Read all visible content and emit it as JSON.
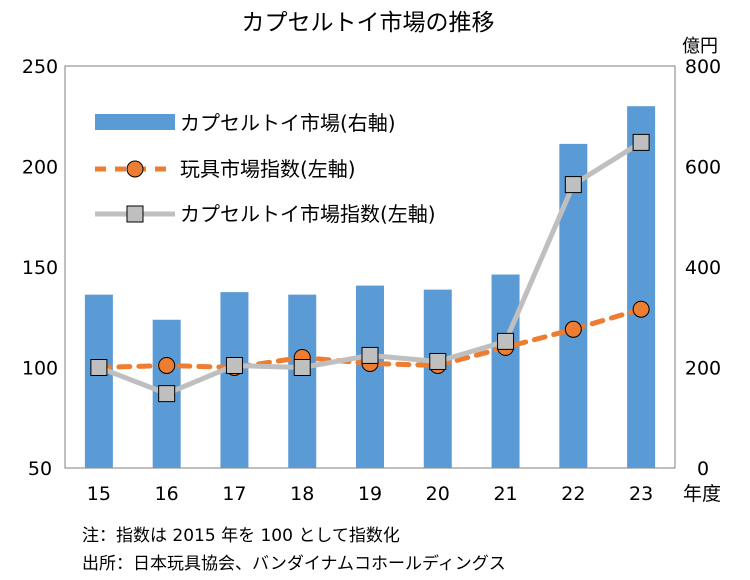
{
  "chart_data": {
    "type": "bar+line",
    "title": "カプセルトイ市場の推移",
    "categories": [
      "15",
      "16",
      "17",
      "18",
      "19",
      "20",
      "21",
      "22",
      "23"
    ],
    "xlabel": "年度",
    "left_axis": {
      "ylim": [
        50,
        250
      ],
      "ticks": [
        "50",
        "100",
        "150",
        "200",
        "250"
      ],
      "label": ""
    },
    "right_axis": {
      "ylim": [
        0,
        800
      ],
      "ticks": [
        "0",
        "200",
        "400",
        "600",
        "800"
      ],
      "label": "億円"
    },
    "legend_position": "top-left",
    "series": [
      {
        "name": "カプセルトイ市場(右軸)",
        "kind": "bar",
        "axis": "right",
        "color": "#5b9bd5",
        "values": [
          345,
          295,
          350,
          345,
          363,
          355,
          385,
          645,
          720
        ]
      },
      {
        "name": "玩具市場指数(左軸)",
        "kind": "line-dashed",
        "axis": "left",
        "color": "#ed7d31",
        "values": [
          100,
          101,
          100,
          105,
          102,
          101,
          110,
          119,
          129
        ]
      },
      {
        "name": "カプセルトイ市場指数(左軸)",
        "kind": "line",
        "axis": "left",
        "color": "#bfbfbf",
        "values": [
          100,
          87,
          101,
          100,
          106,
          103,
          113,
          191,
          212
        ]
      }
    ]
  },
  "notes": [
    "注：指数は 2015 年を 100 として指数化",
    "出所：日本玩具協会、バンダイナムコホールディングス"
  ]
}
